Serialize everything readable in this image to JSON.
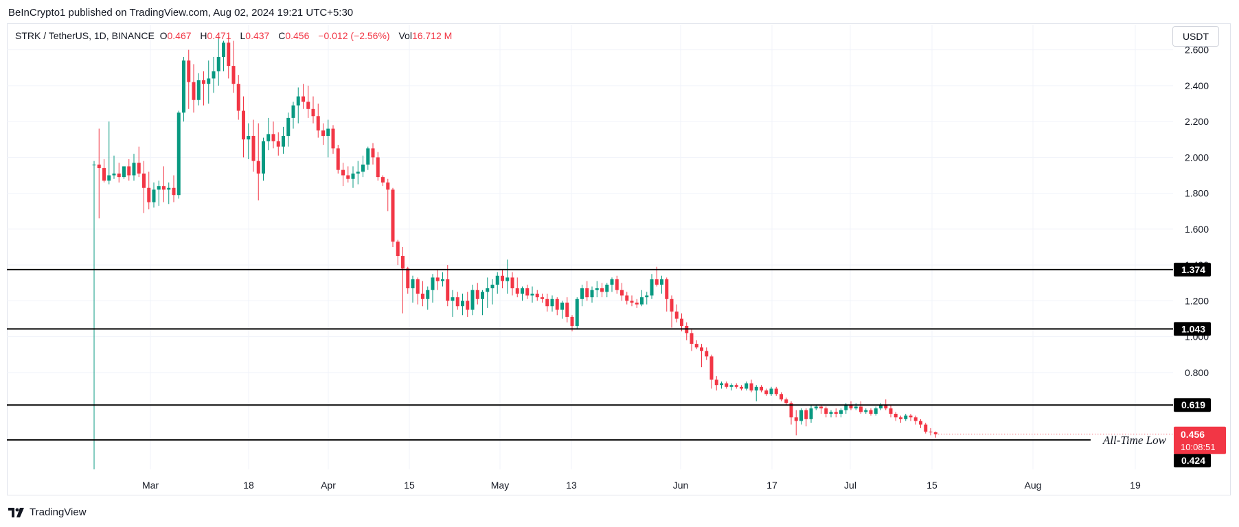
{
  "header": {
    "publisher_line": "BeInCrypto1 published on TradingView.com, Aug 02, 2024 19:21 UTC+5:30"
  },
  "legend": {
    "symbol_line": "STRK / TetherUS, 1D, BINANCE",
    "open_label": "O",
    "open": "0.467",
    "high_label": "H",
    "high": "0.471",
    "low_label": "L",
    "low": "0.437",
    "close_label": "C",
    "close": "0.456",
    "change": "−0.012 (−2.56%)",
    "vol_label": "Vol",
    "vol": "16.712 M"
  },
  "currency_button": "USDT",
  "footer": {
    "brand": "TradingView"
  },
  "colors": {
    "up": "#089981",
    "down": "#f23645",
    "level": "#000000",
    "grid": "#f0f3fa",
    "price_tag": "#f23645"
  },
  "chart_data": {
    "type": "candlestick",
    "y_axis": {
      "ticks": [
        "2.600",
        "2.400",
        "2.200",
        "2.000",
        "1.800",
        "1.600",
        "1.400",
        "1.200",
        "1.000",
        "0.800"
      ],
      "min": 0.26,
      "max": 2.74,
      "side": "right"
    },
    "x_axis": {
      "ticks": [
        "Mar",
        "18",
        "Apr",
        "15",
        "May",
        "13",
        "Jun",
        "17",
        "Jul",
        "15",
        "Aug",
        "19"
      ]
    },
    "horizontal_levels": [
      1.374,
      1.043,
      0.619,
      0.424
    ],
    "level_labels": [
      "1.374",
      "1.043",
      "0.619",
      "0.424"
    ],
    "current_price": {
      "value": 0.456,
      "label": "0.456",
      "countdown": "10:08:51"
    },
    "annotation": "All-Time Low",
    "ohlc": [
      [
        1.96,
        1.98,
        0.26,
        1.96
      ],
      [
        1.96,
        2.16,
        1.66,
        1.94
      ],
      [
        1.94,
        1.99,
        1.86,
        1.87
      ],
      [
        1.87,
        2.2,
        1.85,
        1.9
      ],
      [
        1.9,
        2.01,
        1.88,
        1.91
      ],
      [
        1.91,
        1.97,
        1.86,
        1.89
      ],
      [
        1.89,
        1.95,
        1.88,
        1.95
      ],
      [
        1.95,
        1.99,
        1.87,
        1.9
      ],
      [
        1.9,
        2.02,
        1.87,
        1.97
      ],
      [
        1.97,
        2.06,
        1.89,
        1.91
      ],
      [
        1.91,
        1.98,
        1.69,
        1.83
      ],
      [
        1.83,
        1.92,
        1.71,
        1.75
      ],
      [
        1.75,
        1.86,
        1.72,
        1.82
      ],
      [
        1.82,
        1.87,
        1.73,
        1.84
      ],
      [
        1.84,
        1.95,
        1.75,
        1.82
      ],
      [
        1.82,
        1.86,
        1.74,
        1.83
      ],
      [
        1.83,
        1.9,
        1.75,
        1.79
      ],
      [
        1.79,
        2.26,
        1.77,
        2.25
      ],
      [
        2.25,
        2.56,
        2.2,
        2.54
      ],
      [
        2.54,
        2.6,
        2.27,
        2.42
      ],
      [
        2.42,
        2.52,
        2.25,
        2.32
      ],
      [
        2.32,
        2.47,
        2.29,
        2.43
      ],
      [
        2.43,
        2.48,
        2.29,
        2.41
      ],
      [
        2.41,
        2.54,
        2.3,
        2.44
      ],
      [
        2.44,
        2.56,
        2.36,
        2.48
      ],
      [
        2.48,
        2.67,
        2.4,
        2.56
      ],
      [
        2.56,
        2.65,
        2.48,
        2.64
      ],
      [
        2.64,
        2.68,
        2.44,
        2.51
      ],
      [
        2.51,
        2.65,
        2.36,
        2.41
      ],
      [
        2.41,
        2.46,
        2.21,
        2.26
      ],
      [
        2.26,
        2.34,
        2.0,
        2.1
      ],
      [
        2.1,
        2.19,
        1.99,
        2.12
      ],
      [
        2.12,
        2.21,
        1.92,
        1.98
      ],
      [
        1.98,
        2.19,
        1.76,
        1.91
      ],
      [
        1.91,
        2.11,
        1.87,
        2.09
      ],
      [
        2.09,
        2.22,
        2.04,
        2.13
      ],
      [
        2.13,
        2.2,
        2.05,
        2.09
      ],
      [
        2.09,
        2.14,
        2.01,
        2.06
      ],
      [
        2.06,
        2.17,
        2.02,
        2.12
      ],
      [
        2.12,
        2.25,
        2.06,
        2.22
      ],
      [
        2.22,
        2.31,
        2.16,
        2.29
      ],
      [
        2.29,
        2.39,
        2.19,
        2.34
      ],
      [
        2.34,
        2.41,
        2.27,
        2.31
      ],
      [
        2.31,
        2.4,
        2.22,
        2.27
      ],
      [
        2.27,
        2.34,
        2.19,
        2.23
      ],
      [
        2.23,
        2.3,
        2.11,
        2.15
      ],
      [
        2.15,
        2.19,
        2.07,
        2.12
      ],
      [
        2.12,
        2.21,
        2.0,
        2.16
      ],
      [
        2.16,
        2.18,
        2.02,
        2.05
      ],
      [
        2.05,
        2.07,
        1.91,
        1.93
      ],
      [
        1.93,
        1.97,
        1.84,
        1.9
      ],
      [
        1.9,
        1.95,
        1.86,
        1.88
      ],
      [
        1.88,
        1.95,
        1.83,
        1.91
      ],
      [
        1.91,
        1.98,
        1.85,
        1.92
      ],
      [
        1.92,
        2.01,
        1.89,
        1.96
      ],
      [
        1.96,
        2.06,
        1.93,
        2.05
      ],
      [
        2.05,
        2.08,
        1.96,
        2.0
      ],
      [
        2.0,
        2.03,
        1.87,
        1.89
      ],
      [
        1.89,
        1.9,
        1.84,
        1.86
      ],
      [
        1.86,
        1.88,
        1.7,
        1.82
      ],
      [
        1.82,
        1.83,
        1.5,
        1.53
      ],
      [
        1.53,
        1.54,
        1.4,
        1.45
      ],
      [
        1.45,
        1.5,
        1.13,
        1.38
      ],
      [
        1.38,
        1.39,
        1.24,
        1.27
      ],
      [
        1.27,
        1.34,
        1.19,
        1.32
      ],
      [
        1.32,
        1.33,
        1.18,
        1.24
      ],
      [
        1.24,
        1.31,
        1.17,
        1.21
      ],
      [
        1.21,
        1.28,
        1.15,
        1.26
      ],
      [
        1.26,
        1.35,
        1.19,
        1.33
      ],
      [
        1.33,
        1.37,
        1.26,
        1.31
      ],
      [
        1.31,
        1.36,
        1.28,
        1.32
      ],
      [
        1.32,
        1.4,
        1.17,
        1.2
      ],
      [
        1.2,
        1.26,
        1.11,
        1.22
      ],
      [
        1.22,
        1.25,
        1.15,
        1.17
      ],
      [
        1.17,
        1.24,
        1.12,
        1.2
      ],
      [
        1.2,
        1.25,
        1.11,
        1.15
      ],
      [
        1.15,
        1.29,
        1.12,
        1.26
      ],
      [
        1.26,
        1.3,
        1.18,
        1.21
      ],
      [
        1.21,
        1.26,
        1.12,
        1.25
      ],
      [
        1.25,
        1.33,
        1.16,
        1.27
      ],
      [
        1.27,
        1.32,
        1.18,
        1.29
      ],
      [
        1.29,
        1.36,
        1.24,
        1.34
      ],
      [
        1.34,
        1.37,
        1.27,
        1.31
      ],
      [
        1.31,
        1.43,
        1.24,
        1.33
      ],
      [
        1.33,
        1.36,
        1.23,
        1.27
      ],
      [
        1.27,
        1.33,
        1.22,
        1.24
      ],
      [
        1.24,
        1.28,
        1.2,
        1.27
      ],
      [
        1.27,
        1.29,
        1.21,
        1.23
      ],
      [
        1.23,
        1.28,
        1.19,
        1.24
      ],
      [
        1.24,
        1.26,
        1.2,
        1.22
      ],
      [
        1.22,
        1.24,
        1.19,
        1.21
      ],
      [
        1.21,
        1.24,
        1.14,
        1.17
      ],
      [
        1.17,
        1.23,
        1.14,
        1.21
      ],
      [
        1.21,
        1.22,
        1.12,
        1.15
      ],
      [
        1.15,
        1.2,
        1.1,
        1.19
      ],
      [
        1.19,
        1.22,
        1.08,
        1.11
      ],
      [
        1.11,
        1.12,
        1.03,
        1.06
      ],
      [
        1.06,
        1.22,
        1.04,
        1.21
      ],
      [
        1.21,
        1.29,
        1.17,
        1.27
      ],
      [
        1.27,
        1.31,
        1.2,
        1.22
      ],
      [
        1.22,
        1.28,
        1.19,
        1.26
      ],
      [
        1.26,
        1.31,
        1.22,
        1.27
      ],
      [
        1.27,
        1.3,
        1.22,
        1.25
      ],
      [
        1.25,
        1.3,
        1.22,
        1.29
      ],
      [
        1.29,
        1.33,
        1.25,
        1.32
      ],
      [
        1.32,
        1.34,
        1.24,
        1.26
      ],
      [
        1.26,
        1.3,
        1.2,
        1.23
      ],
      [
        1.23,
        1.25,
        1.18,
        1.2
      ],
      [
        1.2,
        1.23,
        1.17,
        1.19
      ],
      [
        1.19,
        1.21,
        1.16,
        1.18
      ],
      [
        1.18,
        1.26,
        1.17,
        1.22
      ],
      [
        1.22,
        1.25,
        1.18,
        1.23
      ],
      [
        1.23,
        1.35,
        1.21,
        1.32
      ],
      [
        1.32,
        1.39,
        1.28,
        1.29
      ],
      [
        1.29,
        1.34,
        1.24,
        1.32
      ],
      [
        1.32,
        1.33,
        1.14,
        1.21
      ],
      [
        1.21,
        1.23,
        1.05,
        1.14
      ],
      [
        1.14,
        1.18,
        1.08,
        1.1
      ],
      [
        1.1,
        1.13,
        1.03,
        1.06
      ],
      [
        1.06,
        1.08,
        0.98,
        1.02
      ],
      [
        1.02,
        1.04,
        0.92,
        0.96
      ],
      [
        0.96,
        0.98,
        0.93,
        0.94
      ],
      [
        0.94,
        0.96,
        0.83,
        0.92
      ],
      [
        0.92,
        0.94,
        0.87,
        0.89
      ],
      [
        0.89,
        0.9,
        0.71,
        0.76
      ],
      [
        0.76,
        0.78,
        0.7,
        0.73
      ],
      [
        0.73,
        0.75,
        0.71,
        0.74
      ],
      [
        0.74,
        0.75,
        0.71,
        0.72
      ],
      [
        0.72,
        0.74,
        0.7,
        0.73
      ],
      [
        0.73,
        0.74,
        0.71,
        0.72
      ],
      [
        0.72,
        0.73,
        0.7,
        0.71
      ],
      [
        0.71,
        0.75,
        0.7,
        0.74
      ],
      [
        0.74,
        0.76,
        0.69,
        0.7
      ],
      [
        0.7,
        0.73,
        0.64,
        0.72
      ],
      [
        0.72,
        0.73,
        0.69,
        0.7
      ],
      [
        0.7,
        0.71,
        0.67,
        0.68
      ],
      [
        0.68,
        0.72,
        0.67,
        0.71
      ],
      [
        0.71,
        0.72,
        0.67,
        0.68
      ],
      [
        0.68,
        0.69,
        0.64,
        0.65
      ],
      [
        0.65,
        0.66,
        0.62,
        0.63
      ],
      [
        0.63,
        0.64,
        0.51,
        0.55
      ],
      [
        0.55,
        0.59,
        0.45,
        0.53
      ],
      [
        0.53,
        0.6,
        0.51,
        0.59
      ],
      [
        0.59,
        0.6,
        0.5,
        0.54
      ],
      [
        0.54,
        0.62,
        0.52,
        0.6
      ],
      [
        0.6,
        0.62,
        0.59,
        0.61
      ],
      [
        0.61,
        0.62,
        0.57,
        0.6
      ],
      [
        0.6,
        0.61,
        0.55,
        0.57
      ],
      [
        0.57,
        0.59,
        0.55,
        0.58
      ],
      [
        0.58,
        0.6,
        0.55,
        0.57
      ],
      [
        0.57,
        0.6,
        0.55,
        0.59
      ],
      [
        0.59,
        0.63,
        0.57,
        0.62
      ],
      [
        0.62,
        0.64,
        0.59,
        0.6
      ],
      [
        0.6,
        0.63,
        0.59,
        0.61
      ],
      [
        0.61,
        0.64,
        0.57,
        0.58
      ],
      [
        0.58,
        0.6,
        0.57,
        0.59
      ],
      [
        0.59,
        0.6,
        0.56,
        0.57
      ],
      [
        0.57,
        0.61,
        0.56,
        0.6
      ],
      [
        0.6,
        0.63,
        0.59,
        0.62
      ],
      [
        0.62,
        0.65,
        0.59,
        0.6
      ],
      [
        0.6,
        0.62,
        0.55,
        0.57
      ],
      [
        0.57,
        0.58,
        0.53,
        0.55
      ],
      [
        0.55,
        0.56,
        0.52,
        0.54
      ],
      [
        0.54,
        0.57,
        0.53,
        0.56
      ],
      [
        0.56,
        0.57,
        0.53,
        0.55
      ],
      [
        0.55,
        0.56,
        0.51,
        0.53
      ],
      [
        0.53,
        0.54,
        0.49,
        0.51
      ],
      [
        0.51,
        0.52,
        0.46,
        0.47
      ],
      [
        0.47,
        0.49,
        0.45,
        0.468
      ],
      [
        0.467,
        0.471,
        0.437,
        0.456
      ]
    ]
  }
}
